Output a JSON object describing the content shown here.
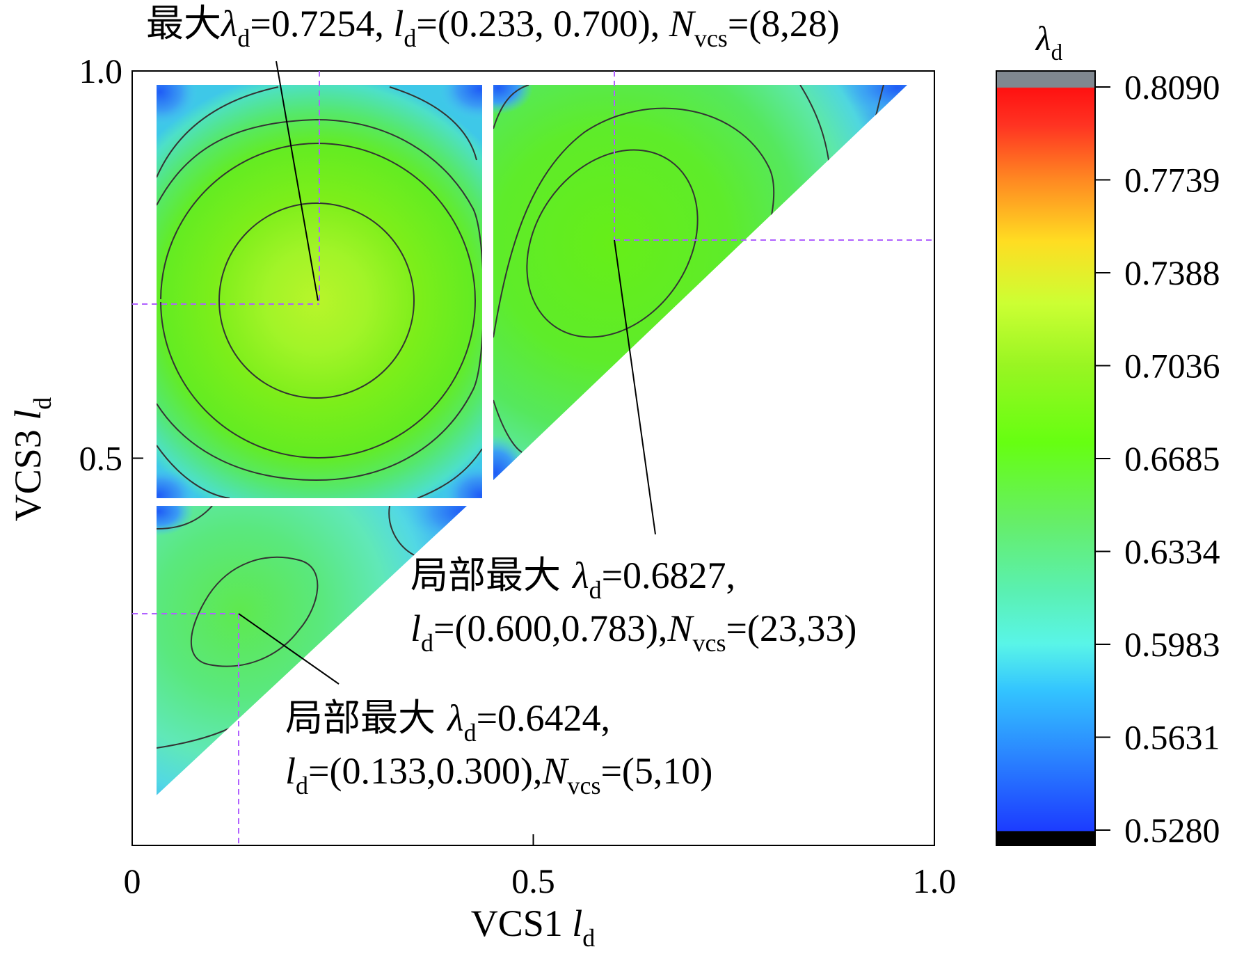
{
  "chart_data": {
    "type": "heatmap",
    "xlabel": {
      "main": "VCS1 ",
      "var": "l",
      "sub": "d"
    },
    "ylabel": {
      "main": "VCS3 ",
      "var": "l",
      "sub": "d"
    },
    "xlim": [
      0,
      1.0
    ],
    "ylim": [
      0,
      1.0
    ],
    "x_ticks": [
      {
        "value": 0,
        "label": "0"
      },
      {
        "value": 0.5,
        "label": "0.5"
      },
      {
        "value": 1.0,
        "label": "1.0"
      }
    ],
    "y_ticks": [
      {
        "value": 0.5,
        "label": "0.5"
      },
      {
        "value": 1.0,
        "label": "1.0"
      }
    ],
    "grid": false,
    "region": "upper triangle (VCS3 > VCS1), split at 0.45 / 0.45",
    "colorbar": {
      "title": {
        "var": "λ",
        "sub": "d"
      },
      "min": 0.528,
      "max": 0.809,
      "ticks": [
        "0.8090",
        "0.7739",
        "0.7388",
        "0.7036",
        "0.6685",
        "0.6334",
        "0.5983",
        "0.5631",
        "0.5280"
      ],
      "colors": [
        "#000000",
        "#1c3cff",
        "#2b88ff",
        "#33c4ff",
        "#59f5e8",
        "#5af0b0",
        "#66ee66",
        "#66ff11",
        "#99f522",
        "#ccff33",
        "#ffdd22",
        "#ff8822",
        "#ff3322",
        "#ff1111",
        "#808890"
      ],
      "placement": "right"
    },
    "peaks": [
      {
        "kind": "global",
        "x": 0.233,
        "y": 0.7,
        "value": 0.7254,
        "n_vcs": [
          8,
          28
        ]
      },
      {
        "kind": "local",
        "x": 0.6,
        "y": 0.783,
        "value": 0.6827,
        "n_vcs": [
          23,
          33
        ]
      },
      {
        "kind": "local",
        "x": 0.133,
        "y": 0.3,
        "value": 0.6424,
        "n_vcs": [
          5,
          10
        ]
      }
    ],
    "annotations": [
      {
        "lines": [
          [
            {
              "t": "最大",
              "f": "cjk"
            },
            {
              "t": "λ",
              "f": "i"
            },
            {
              "t": "d",
              "f": "sub"
            },
            {
              "t": "=0.7254, "
            },
            {
              "t": "l",
              "f": "i"
            },
            {
              "t": "d",
              "f": "sub"
            },
            {
              "t": "=(0.233, 0.700), "
            },
            {
              "t": "N",
              "f": "i"
            },
            {
              "t": "vcs",
              "f": "sub"
            },
            {
              "t": "=(8,28)"
            }
          ]
        ]
      },
      {
        "lines": [
          [
            {
              "t": "局部最大 ",
              "f": "cjk"
            },
            {
              "t": "λ",
              "f": "i"
            },
            {
              "t": "d",
              "f": "sub"
            },
            {
              "t": "=0.6827,"
            }
          ],
          [
            {
              "t": "l",
              "f": "i"
            },
            {
              "t": "d",
              "f": "sub"
            },
            {
              "t": "=(0.600,0.783),"
            },
            {
              "t": "N",
              "f": "i"
            },
            {
              "t": "vcs",
              "f": "sub"
            },
            {
              "t": "=(23,33)"
            }
          ]
        ]
      },
      {
        "lines": [
          [
            {
              "t": "局部最大 ",
              "f": "cjk"
            },
            {
              "t": "λ",
              "f": "i"
            },
            {
              "t": "d",
              "f": "sub"
            },
            {
              "t": "=0.6424,"
            }
          ],
          [
            {
              "t": "l",
              "f": "i"
            },
            {
              "t": "d",
              "f": "sub"
            },
            {
              "t": "=(0.133,0.300),"
            },
            {
              "t": "N",
              "f": "i"
            },
            {
              "t": "vcs",
              "f": "sub"
            },
            {
              "t": "=(5,10)"
            }
          ]
        ]
      }
    ]
  }
}
